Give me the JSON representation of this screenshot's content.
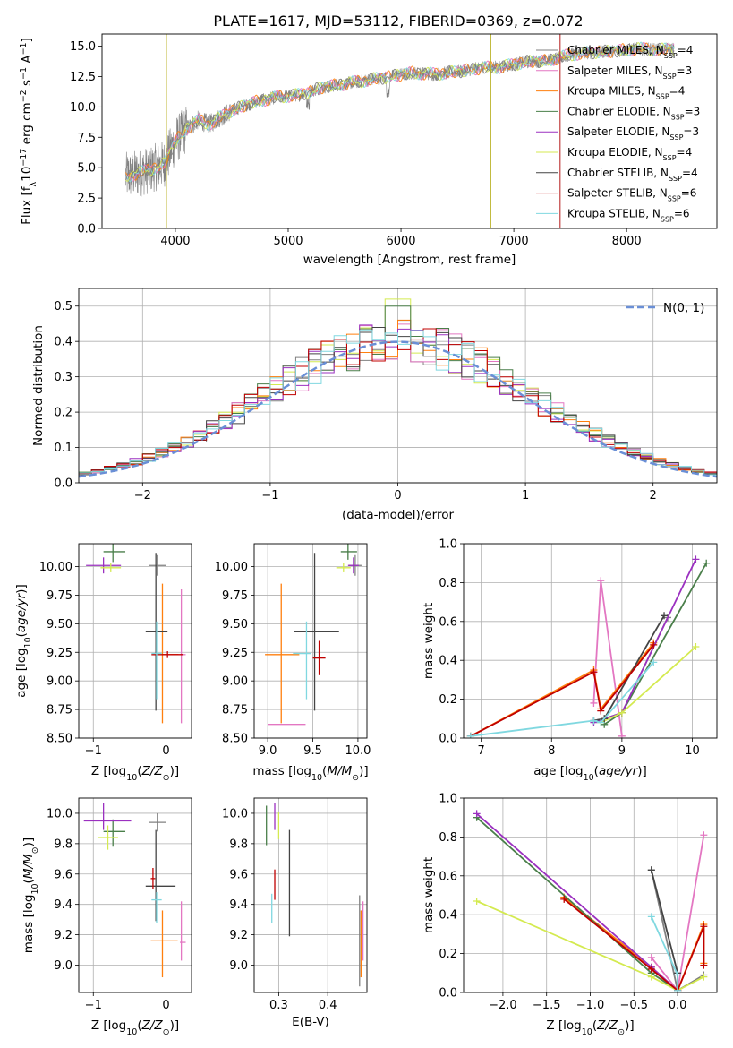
{
  "figure_title": "PLATE=1617, MJD=53112, FIBERID=0369, z=0.072",
  "models": [
    {
      "name": "Chabrier MILES, N_SSP=4",
      "color": "#808080",
      "n": 4
    },
    {
      "name": "Salpeter MILES, N_SSP=3",
      "color": "#e377c2",
      "n": 3
    },
    {
      "name": "Kroupa MILES, N_SSP=4",
      "color": "#ff7f0e",
      "n": 4
    },
    {
      "name": "Chabrier ELODIE, N_SSP=3",
      "color": "#4a7f4a",
      "n": 3
    },
    {
      "name": "Salpeter ELODIE, N_SSP=3",
      "color": "#9b30c0",
      "n": 3
    },
    {
      "name": "Kroupa ELODIE, N_SSP=4",
      "color": "#d4ea50",
      "n": 4
    },
    {
      "name": "Chabrier STELIB, N_SSP=4",
      "color": "#444444",
      "n": 4
    },
    {
      "name": "Salpeter STELIB, N_SSP=6",
      "color": "#c00000",
      "n": 6
    },
    {
      "name": "Kroupa STELIB, N_SSP=6",
      "color": "#80d8e0",
      "n": 6
    }
  ],
  "chart_data": [
    {
      "id": "spectrum",
      "type": "line",
      "title": "PLATE=1617, MJD=53112, FIBERID=0369, z=0.072",
      "xlabel": "wavelength [Angstrom, rest frame]",
      "ylabel": "Flux [f_λ 10^-17 erg cm^-2 s^-1 A^-1]",
      "xlim": [
        3350,
        8800
      ],
      "ylim": [
        0,
        16
      ],
      "xticks": [
        4000,
        5000,
        6000,
        7000,
        8000
      ],
      "yticks": [
        0.0,
        2.5,
        5.0,
        7.5,
        10.0,
        12.5,
        15.0
      ],
      "continuum": {
        "x": [
          3560,
          3700,
          3900,
          4000,
          4100,
          4200,
          4300,
          4500,
          4700,
          4900,
          5100,
          5300,
          5500,
          5700,
          5900,
          6100,
          6300,
          6500,
          6700,
          6900,
          7100,
          7300,
          7500,
          7700,
          7900,
          8100,
          8300,
          8420
        ],
        "y": [
          4.3,
          4.6,
          5.3,
          7.2,
          8.2,
          8.9,
          8.6,
          9.7,
          10.4,
          10.8,
          11.0,
          11.6,
          11.9,
          12.2,
          12.5,
          12.8,
          12.7,
          12.9,
          13.2,
          13.3,
          13.7,
          13.8,
          14.3,
          14.5,
          14.6,
          14.8,
          14.7,
          14.8
        ]
      },
      "legend_loc": "upper right"
    },
    {
      "id": "residuals",
      "type": "histogram",
      "xlabel": "(data-model)/error",
      "ylabel": "Normed distribution",
      "xlim": [
        -2.5,
        2.5
      ],
      "ylim": [
        0,
        0.55
      ],
      "xticks": [
        -2,
        -1,
        0,
        1,
        2
      ],
      "yticks": [
        0.0,
        0.1,
        0.2,
        0.3,
        0.4,
        0.5
      ],
      "bin_width": 0.1,
      "grid": true,
      "reference_curve": "N(0, 1)",
      "legend_loc": "upper right"
    },
    {
      "id": "age_vs_Z",
      "type": "scatter",
      "xlabel": "Z [log10(Z/Z☉)]",
      "ylabel": "age [log10(age/yr)]",
      "xlim": [
        -1.2,
        0.35
      ],
      "ylim": [
        8.5,
        10.2
      ],
      "xticks": [
        -1,
        0
      ],
      "yticks": [
        8.5,
        8.75,
        9.0,
        9.25,
        9.5,
        9.75,
        10.0
      ],
      "grid": true,
      "points": [
        {
          "model": 0,
          "x": -0.12,
          "xerr": [
            0.12,
            0.12
          ],
          "y": 10.01,
          "yerr": [
            0.09,
            0.09
          ]
        },
        {
          "model": 1,
          "x": 0.21,
          "xerr": [
            0.02,
            0.06
          ],
          "y": 9.23,
          "yerr": [
            0.6,
            0.57
          ]
        },
        {
          "model": 2,
          "x": -0.05,
          "xerr": [
            0.13,
            0.22
          ],
          "y": 9.23,
          "yerr": [
            0.6,
            0.62
          ]
        },
        {
          "model": 3,
          "x": -0.73,
          "xerr": [
            0.13,
            0.17
          ],
          "y": 10.13,
          "yerr": [
            0.09,
            0.09
          ]
        },
        {
          "model": 4,
          "x": -0.86,
          "xerr": [
            0.24,
            0.24
          ],
          "y": 10.01,
          "yerr": [
            0.07,
            0.07
          ]
        },
        {
          "model": 5,
          "x": -0.76,
          "xerr": [
            0.14,
            0.14
          ],
          "y": 9.99,
          "yerr": [
            0.04,
            0.04
          ]
        },
        {
          "model": 6,
          "x": -0.14,
          "xerr": [
            0.14,
            0.16
          ],
          "y": 9.43,
          "yerr": [
            0.69,
            0.69
          ]
        },
        {
          "model": 7,
          "x": 0.02,
          "xerr": [
            0.22,
            0.22
          ],
          "y": 9.23,
          "yerr": [
            0.03,
            0.03
          ]
        },
        {
          "model": 8,
          "x": -0.13,
          "xerr": [
            0.07,
            0.07
          ],
          "y": 9.24,
          "yerr": [
            0.4,
            0.28
          ]
        }
      ]
    },
    {
      "id": "age_vs_mass",
      "type": "scatter",
      "xlabel": "mass [log10(M/M☉)]",
      "ylabel": "",
      "xlim": [
        8.85,
        10.1
      ],
      "ylim": [
        8.5,
        10.2
      ],
      "xticks": [
        9.0,
        9.5,
        10.0
      ],
      "yticks": [
        8.5,
        8.75,
        9.0,
        9.25,
        9.5,
        9.75,
        10.0
      ],
      "grid": true,
      "points": [
        {
          "model": 0,
          "x": 9.97,
          "xerr": [
            0.07,
            0.07
          ],
          "y": 10.01,
          "yerr": [
            0.09,
            0.09
          ]
        },
        {
          "model": 1,
          "x": 9.15,
          "xerr": [
            0.15,
            0.27
          ],
          "y": 8.62,
          "yerr": [
            0.0,
            0.0
          ],
          "yerr_vert": [
            0.0,
            0.0
          ]
        },
        {
          "model": 2,
          "x": 9.15,
          "xerr": [
            0.18,
            0.2
          ],
          "y": 9.23,
          "yerr": [
            0.6,
            0.62
          ]
        },
        {
          "model": 3,
          "x": 9.89,
          "xerr": [
            0.08,
            0.1
          ],
          "y": 10.13,
          "yerr": [
            0.07,
            0.07
          ]
        },
        {
          "model": 4,
          "x": 9.95,
          "xerr": [
            0.06,
            0.06
          ],
          "y": 10.01,
          "yerr": [
            0.07,
            0.07
          ]
        },
        {
          "model": 5,
          "x": 9.84,
          "xerr": [
            0.08,
            0.08
          ],
          "y": 9.99,
          "yerr": [
            0.04,
            0.04
          ]
        },
        {
          "model": 6,
          "x": 9.52,
          "xerr": [
            0.23,
            0.27
          ],
          "y": 9.43,
          "yerr": [
            0.69,
            0.69
          ]
        },
        {
          "model": 7,
          "x": 9.57,
          "xerr": [
            0.07,
            0.07
          ],
          "y": 9.2,
          "yerr": [
            0.15,
            0.15
          ]
        },
        {
          "model": 8,
          "x": 9.43,
          "xerr": [
            0.15,
            0.05
          ],
          "y": 9.24,
          "yerr": [
            0.4,
            0.28
          ]
        }
      ]
    },
    {
      "id": "weight_vs_age",
      "type": "line",
      "xlabel": "age [log10(age/yr)]",
      "ylabel": "mass weight",
      "xlim": [
        6.75,
        10.35
      ],
      "ylim": [
        0,
        1.0
      ],
      "xticks": [
        7,
        8,
        9,
        10
      ],
      "yticks": [
        0.0,
        0.2,
        0.4,
        0.6,
        0.8,
        1.0
      ],
      "grid": true,
      "series": [
        {
          "model": 0,
          "x": [
            8.6,
            8.75,
            9.0,
            9.65
          ],
          "y": [
            0.09,
            0.1,
            0.13,
            0.62
          ]
        },
        {
          "model": 1,
          "x": [
            8.6,
            8.7,
            9.0
          ],
          "y": [
            0.18,
            0.81,
            0.01
          ]
        },
        {
          "model": 2,
          "x": [
            6.85,
            8.6,
            8.7,
            9.45
          ],
          "y": [
            0.01,
            0.35,
            0.15,
            0.49
          ]
        },
        {
          "model": 3,
          "x": [
            8.75,
            9.0,
            10.2
          ],
          "y": [
            0.07,
            0.13,
            0.9
          ]
        },
        {
          "model": 4,
          "x": [
            8.6,
            9.0,
            10.05
          ],
          "y": [
            0.08,
            0.13,
            0.92
          ]
        },
        {
          "model": 5,
          "x": [
            8.7,
            9.0,
            10.05
          ],
          "y": [
            0.08,
            0.13,
            0.47
          ]
        },
        {
          "model": 6,
          "x": [
            8.6,
            8.75,
            9.6
          ],
          "y": [
            0.09,
            0.1,
            0.63
          ]
        },
        {
          "model": 7,
          "x": [
            6.85,
            8.6,
            8.7,
            9.45
          ],
          "y": [
            0.01,
            0.34,
            0.14,
            0.48
          ]
        },
        {
          "model": 8,
          "x": [
            6.85,
            8.6,
            8.7,
            9.45
          ],
          "y": [
            0.01,
            0.09,
            0.08,
            0.39
          ]
        }
      ]
    },
    {
      "id": "mass_vs_Z",
      "type": "scatter",
      "xlabel": "Z [log10(Z/Z☉)]",
      "ylabel": "mass [log10(M/M☉)]",
      "xlim": [
        -1.2,
        0.35
      ],
      "ylim": [
        8.82,
        10.1
      ],
      "xticks": [
        -1,
        0
      ],
      "yticks": [
        9.0,
        9.2,
        9.4,
        9.6,
        9.8,
        10.0
      ],
      "grid": true,
      "points": [
        {
          "model": 0,
          "x": -0.12,
          "xerr": [
            0.12,
            0.12
          ],
          "y": 9.94,
          "yerr": [
            0.06,
            0.06
          ]
        },
        {
          "model": 1,
          "x": 0.21,
          "xerr": [
            0.02,
            0.06
          ],
          "y": 9.15,
          "yerr": [
            0.12,
            0.27
          ]
        },
        {
          "model": 2,
          "x": -0.05,
          "xerr": [
            0.16,
            0.21
          ],
          "y": 9.16,
          "yerr": [
            0.24,
            0.2
          ]
        },
        {
          "model": 3,
          "x": -0.73,
          "xerr": [
            0.13,
            0.17
          ],
          "y": 9.88,
          "yerr": [
            0.1,
            0.08
          ]
        },
        {
          "model": 4,
          "x": -0.86,
          "xerr": [
            0.27,
            0.38
          ],
          "y": 9.95,
          "yerr": [
            0.06,
            0.12
          ]
        },
        {
          "model": 5,
          "x": -0.8,
          "xerr": [
            0.14,
            0.14
          ],
          "y": 9.84,
          "yerr": [
            0.08,
            0.08
          ]
        },
        {
          "model": 6,
          "x": -0.14,
          "xerr": [
            0.14,
            0.27
          ],
          "y": 9.52,
          "yerr": [
            0.23,
            0.37
          ]
        },
        {
          "model": 7,
          "x": -0.18,
          "xerr": [
            0.03,
            0.03
          ],
          "y": 9.57,
          "yerr": [
            0.07,
            0.07
          ]
        },
        {
          "model": 8,
          "x": -0.13,
          "xerr": [
            0.07,
            0.07
          ],
          "y": 9.43,
          "yerr": [
            0.15,
            0.05
          ]
        }
      ]
    },
    {
      "id": "mass_vs_ebv",
      "type": "scatter",
      "xlabel": "E(B-V)",
      "ylabel": "",
      "xlim": [
        0.25,
        0.48
      ],
      "ylim": [
        8.82,
        10.1
      ],
      "xticks": [
        0.3,
        0.4
      ],
      "yticks": [
        9.0,
        9.2,
        9.4,
        9.6,
        9.8,
        10.0
      ],
      "grid": true,
      "points": [
        {
          "model": 0,
          "x": 0.465,
          "y": 9.16,
          "yerr": [
            0.3,
            0.3
          ]
        },
        {
          "model": 1,
          "x": 0.472,
          "y": 9.15,
          "yerr": [
            0.12,
            0.27
          ]
        },
        {
          "model": 2,
          "x": 0.468,
          "y": 9.16,
          "yerr": [
            0.24,
            0.2
          ]
        },
        {
          "model": 3,
          "x": 0.275,
          "y": 9.92,
          "yerr": [
            0.13,
            0.13
          ]
        },
        {
          "model": 4,
          "x": 0.292,
          "y": 9.95,
          "yerr": [
            0.06,
            0.12
          ]
        },
        {
          "model": 5,
          "x": 0.3,
          "y": 9.92,
          "yerr": [
            0.09,
            0.09
          ]
        },
        {
          "model": 6,
          "x": 0.322,
          "y": 9.53,
          "yerr": [
            0.34,
            0.36
          ]
        },
        {
          "model": 7,
          "x": 0.292,
          "y": 9.53,
          "yerr": [
            0.1,
            0.1
          ]
        },
        {
          "model": 8,
          "x": 0.286,
          "y": 9.42,
          "yerr": [
            0.14,
            0.05
          ]
        }
      ]
    },
    {
      "id": "weight_vs_Z",
      "type": "line",
      "xlabel": "Z [log10(Z/Z☉)]",
      "ylabel": "mass weight",
      "xlim": [
        -2.45,
        0.45
      ],
      "ylim": [
        0,
        1.0
      ],
      "xticks": [
        -2.0,
        -1.5,
        -1.0,
        -0.5,
        0.0
      ],
      "yticks": [
        0.0,
        0.2,
        0.4,
        0.6,
        0.8,
        1.0
      ],
      "grid": true,
      "series": [
        {
          "model": 0,
          "x": [
            -0.3,
            0.0,
            0.3
          ],
          "y": [
            0.63,
            0.01,
            0.09
          ]
        },
        {
          "model": 1,
          "x": [
            -0.3,
            0.0,
            0.3
          ],
          "y": [
            0.18,
            0.01,
            0.81
          ]
        },
        {
          "model": 2,
          "x": [
            -1.3,
            -0.3,
            0.0,
            0.3,
            0.3
          ],
          "y": [
            0.49,
            0.13,
            0.01,
            0.35,
            0.15
          ]
        },
        {
          "model": 3,
          "x": [
            -2.3,
            -0.3,
            0.0
          ],
          "y": [
            0.9,
            0.1,
            0.01
          ]
        },
        {
          "model": 4,
          "x": [
            -2.3,
            -0.3,
            0.0
          ],
          "y": [
            0.92,
            0.13,
            0.01
          ]
        },
        {
          "model": 5,
          "x": [
            -2.3,
            -0.3,
            0.0,
            0.3
          ],
          "y": [
            0.47,
            0.08,
            0.01,
            0.08
          ]
        },
        {
          "model": 6,
          "x": [
            -0.3,
            0.0,
            0.0
          ],
          "y": [
            0.63,
            0.1,
            0.01
          ]
        },
        {
          "model": 7,
          "x": [
            -1.3,
            -0.3,
            0.0,
            0.3,
            0.3
          ],
          "y": [
            0.48,
            0.12,
            0.01,
            0.34,
            0.14
          ]
        },
        {
          "model": 8,
          "x": [
            -0.3,
            0.0,
            0.0
          ],
          "y": [
            0.39,
            0.09,
            0.01
          ]
        }
      ]
    }
  ],
  "colors": {
    "normal_curve": "#6a8fd6",
    "grid": "#b0b0b0"
  }
}
